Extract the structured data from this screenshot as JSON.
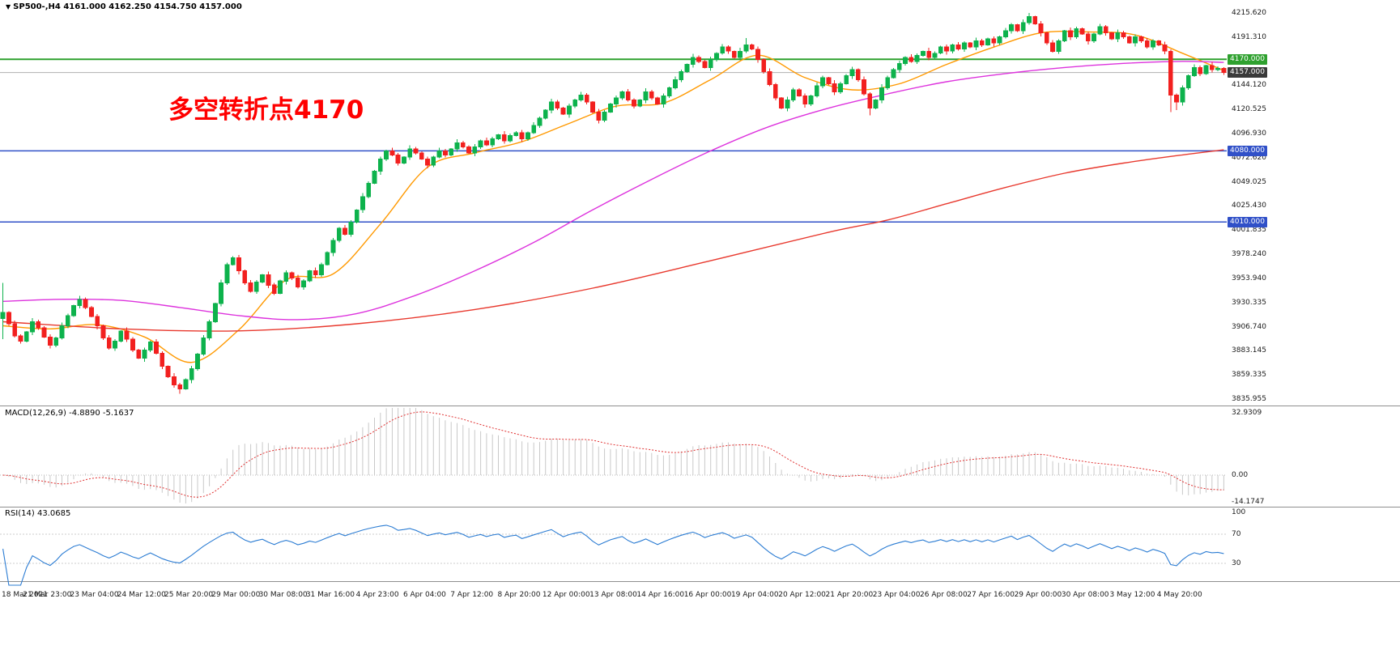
{
  "header": {
    "collapse_icon": "▼",
    "symbol_info": "SP500-,H4  4161.000 4162.250 4154.750 4157.000",
    "symbol": "SP500-",
    "timeframe": "H4",
    "ohlc": {
      "open": 4161.0,
      "high": 4162.25,
      "low": 4154.75,
      "close": 4157.0
    }
  },
  "annotation": {
    "text": "多空转折点4170",
    "color": "#ff0000"
  },
  "colors": {
    "background": "#ffffff",
    "bullish": "#0db24c",
    "bearish": "#f2201f",
    "ma_fast": "#ff9900",
    "ma_mid": "#dd33dd",
    "ma_slow": "#e8392e",
    "macd_histogram": "#c9c9c9",
    "macd_signal": "#e03131",
    "rsi_line": "#2b7cd3",
    "separator": "#8f8f8f",
    "axis_text": "#1a1a1a"
  },
  "price_axis_labels": [
    "4215.620",
    "4191.310",
    "4144.120",
    "4120.525",
    "4096.930",
    "4072.620",
    "4049.025",
    "4025.430",
    "4001.835",
    "3978.240",
    "3953.940",
    "3930.335",
    "3906.740",
    "3883.145",
    "3859.335",
    "3835.955"
  ],
  "time_axis_labels": [
    "18 Mar 2021",
    "21 Mar 23:00",
    "23 Mar 04:00",
    "24 Mar 12:00",
    "25 Mar 20:00",
    "29 Mar 00:00",
    "30 Mar 08:00",
    "31 Mar 16:00",
    "4 Apr 23:00",
    "6 Apr 04:00",
    "7 Apr 12:00",
    "8 Apr 20:00",
    "12 Apr 00:00",
    "13 Apr 08:00",
    "14 Apr 16:00",
    "16 Apr 00:00",
    "19 Apr 04:00",
    "20 Apr 12:00",
    "21 Apr 20:00",
    "23 Apr 04:00",
    "26 Apr 08:00",
    "27 Apr 16:00",
    "29 Apr 00:00",
    "30 Apr 08:00",
    "3 May 12:00",
    "4 May 20:00"
  ],
  "levels": [
    {
      "price": 4170.0,
      "tag": "4170.000",
      "line_color": "#2fa12f",
      "tag_bg": "#2fa12f",
      "width": 2,
      "above_candles": false
    },
    {
      "price": 4157.0,
      "tag": "4157.000",
      "line_color": "#b0b0b0",
      "tag_bg": "#3a3a3a",
      "width": 1,
      "above_candles": true
    },
    {
      "price": 4080.0,
      "tag": "4080.000",
      "line_color": "#3050c8",
      "tag_bg": "#3050c8",
      "width": 1.5,
      "above_candles": false
    },
    {
      "price": 4010.0,
      "tag": "4010.000",
      "line_color": "#3050c8",
      "tag_bg": "#3050c8",
      "width": 1.5,
      "above_candles": false
    }
  ],
  "macd_panel": {
    "label": "MACD(12,26,9) -4.8890 -5.1637",
    "params": {
      "fast": 12,
      "slow": 26,
      "signal": 9
    },
    "current_main": -4.889,
    "current_signal": -5.1637,
    "axis_labels": [
      {
        "value": 32.9309,
        "text": "32.9309"
      },
      {
        "value": 0,
        "text": "0.00"
      },
      {
        "value": -14.1747,
        "text": "-14.1747"
      }
    ],
    "scale": {
      "max": 32.9309,
      "min": -14.1747
    }
  },
  "rsi_panel": {
    "label": "RSI(14) 43.0685",
    "period": 14,
    "current": 43.0685,
    "axis_labels": [
      {
        "value": 100,
        "text": "100"
      },
      {
        "value": 70,
        "text": "70"
      },
      {
        "value": 30,
        "text": "30"
      }
    ],
    "guide_levels": [
      70,
      30
    ],
    "scale": {
      "max": 100,
      "min": 0
    }
  },
  "chart_data": {
    "type": "candlestick",
    "title": "SP500-,H4",
    "timeframe": "H4",
    "x_labels": "see time_axis_labels (one label every 8 H4 candles)",
    "y_range": [
      3835.955,
      4215.62
    ],
    "ohlc_current": {
      "open": 4161.0,
      "high": 4162.25,
      "low": 4154.75,
      "close": 4157.0
    },
    "first_open": 3915,
    "closes": [
      3921,
      3910,
      3898,
      3893,
      3902,
      3912,
      3906,
      3897,
      3889,
      3896,
      3908,
      3918,
      3928,
      3934,
      3926,
      3917,
      3908,
      3896,
      3886,
      3893,
      3903,
      3895,
      3884,
      3876,
      3884,
      3892,
      3881,
      3868,
      3858,
      3850,
      3846,
      3855,
      3866,
      3880,
      3896,
      3912,
      3930,
      3950,
      3968,
      3975,
      3962,
      3950,
      3942,
      3951,
      3958,
      3948,
      3940,
      3952,
      3960,
      3955,
      3946,
      3952,
      3962,
      3958,
      3968,
      3980,
      3992,
      4004,
      3998,
      4010,
      4022,
      4035,
      4048,
      4060,
      4072,
      4080,
      4076,
      4068,
      4074,
      4082,
      4078,
      4072,
      4066,
      4074,
      4080,
      4076,
      4082,
      4088,
      4084,
      4078,
      4084,
      4090,
      4086,
      4092,
      4096,
      4090,
      4095,
      4098,
      4092,
      4098,
      4105,
      4112,
      4120,
      4128,
      4122,
      4116,
      4124,
      4130,
      4135,
      4128,
      4118,
      4110,
      4118,
      4126,
      4132,
      4138,
      4130,
      4124,
      4130,
      4138,
      4132,
      4126,
      4134,
      4142,
      4150,
      4158,
      4165,
      4172,
      4168,
      4162,
      4170,
      4176,
      4182,
      4178,
      4172,
      4178,
      4184,
      4180,
      4170,
      4158,
      4145,
      4132,
      4122,
      4130,
      4140,
      4134,
      4126,
      4134,
      4144,
      4152,
      4146,
      4138,
      4146,
      4154,
      4160,
      4150,
      4136,
      4122,
      4130,
      4142,
      4152,
      4160,
      4166,
      4172,
      4168,
      4174,
      4178,
      4172,
      4176,
      4182,
      4178,
      4184,
      4180,
      4186,
      4182,
      4188,
      4184,
      4190,
      4186,
      4192,
      4198,
      4204,
      4198,
      4206,
      4212,
      4205,
      4196,
      4186,
      4178,
      4188,
      4198,
      4192,
      4200,
      4195,
      4188,
      4195,
      4202,
      4196,
      4190,
      4196,
      4192,
      4186,
      4192,
      4188,
      4182,
      4188,
      4184,
      4178,
      4135,
      4128,
      4142,
      4154,
      4162,
      4156,
      4164,
      4160,
      4161,
      4157
    ],
    "wick_pattern": [
      2.5,
      1.2,
      3.0,
      1.8,
      0.8,
      3.4,
      2.0,
      1.4
    ],
    "wick_overrides": {
      "0": {
        "high": 3950,
        "low": 3895
      },
      "30": {
        "low": 3841
      },
      "126": {
        "high": 4191
      },
      "147": {
        "low": 4115
      },
      "174": {
        "high": 4215.6
      },
      "175": {
        "high": 4213
      },
      "198": {
        "low": 4118
      },
      "199": {
        "low": 4120
      },
      "207": {
        "high": 4162.25,
        "low": 4154.75
      }
    },
    "moving_averages": [
      {
        "name": "ma-fast-orange",
        "color": "#ff9900",
        "anchors": [
          [
            0,
            3908
          ],
          [
            8,
            3905
          ],
          [
            16,
            3909
          ],
          [
            24,
            3897
          ],
          [
            32,
            3872
          ],
          [
            40,
            3904
          ],
          [
            48,
            3953
          ],
          [
            56,
            3959
          ],
          [
            64,
            4008
          ],
          [
            72,
            4064
          ],
          [
            80,
            4078
          ],
          [
            88,
            4089
          ],
          [
            96,
            4107
          ],
          [
            104,
            4124
          ],
          [
            112,
            4127
          ],
          [
            120,
            4150
          ],
          [
            128,
            4174
          ],
          [
            136,
            4152
          ],
          [
            144,
            4140
          ],
          [
            152,
            4146
          ],
          [
            160,
            4165
          ],
          [
            168,
            4182
          ],
          [
            176,
            4196
          ],
          [
            184,
            4197
          ],
          [
            192,
            4194
          ],
          [
            200,
            4176
          ],
          [
            207,
            4159
          ]
        ]
      },
      {
        "name": "ma-mid-magenta",
        "color": "#dd33dd",
        "anchors": [
          [
            0,
            3932
          ],
          [
            10,
            3934
          ],
          [
            20,
            3933
          ],
          [
            30,
            3926
          ],
          [
            40,
            3918
          ],
          [
            50,
            3914
          ],
          [
            60,
            3920
          ],
          [
            70,
            3938
          ],
          [
            80,
            3962
          ],
          [
            90,
            3990
          ],
          [
            100,
            4022
          ],
          [
            110,
            4052
          ],
          [
            120,
            4080
          ],
          [
            130,
            4104
          ],
          [
            140,
            4122
          ],
          [
            150,
            4136
          ],
          [
            160,
            4148
          ],
          [
            170,
            4156
          ],
          [
            180,
            4162
          ],
          [
            190,
            4166
          ],
          [
            200,
            4168
          ],
          [
            207,
            4167
          ]
        ]
      },
      {
        "name": "ma-slow-red",
        "color": "#e8392e",
        "anchors": [
          [
            0,
            3912
          ],
          [
            20,
            3905
          ],
          [
            40,
            3903
          ],
          [
            60,
            3910
          ],
          [
            80,
            3924
          ],
          [
            100,
            3945
          ],
          [
            120,
            3972
          ],
          [
            140,
            4000
          ],
          [
            150,
            4012
          ],
          [
            160,
            4028
          ],
          [
            170,
            4044
          ],
          [
            180,
            4058
          ],
          [
            190,
            4068
          ],
          [
            200,
            4076
          ],
          [
            207,
            4081
          ]
        ]
      }
    ]
  }
}
